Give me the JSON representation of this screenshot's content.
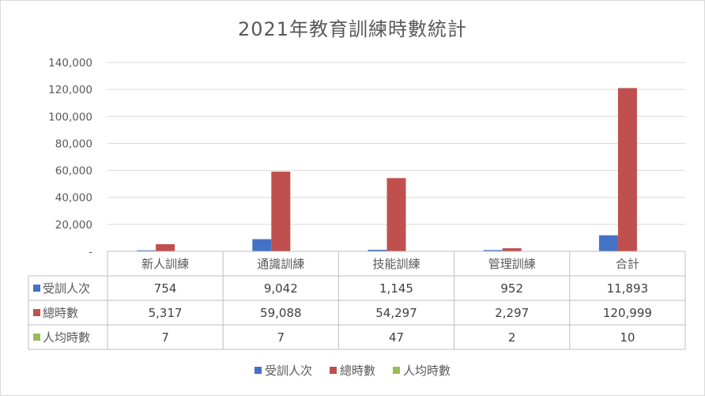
{
  "chart_data": {
    "type": "bar",
    "title": "2021年教育訓練時數統計",
    "categories": [
      "新人訓練",
      "通識訓練",
      "技能訓練",
      "管理訓練",
      "合計"
    ],
    "series": [
      {
        "name": "受訓人次",
        "color": "#4472c4",
        "values": [
          754,
          9042,
          1145,
          952,
          11893
        ],
        "labels": [
          "754",
          "9,042",
          "1,145",
          "952",
          "11,893"
        ]
      },
      {
        "name": "總時數",
        "color": "#c0504d",
        "values": [
          5317,
          59088,
          54297,
          2297,
          120999
        ],
        "labels": [
          "5,317",
          "59,088",
          "54,297",
          "2,297",
          "120,999"
        ]
      },
      {
        "name": "人均時數",
        "color": "#9bbb59",
        "values": [
          7,
          7,
          47,
          2,
          10
        ],
        "labels": [
          "7",
          "7",
          "47",
          "2",
          "10"
        ]
      }
    ],
    "ylim": [
      0,
      140000
    ],
    "yticks": [
      {
        "value": 0,
        "label": "-"
      },
      {
        "value": 20000,
        "label": "20,000"
      },
      {
        "value": 40000,
        "label": "40,000"
      },
      {
        "value": 60000,
        "label": "60,000"
      },
      {
        "value": 80000,
        "label": "80,000"
      },
      {
        "value": 100000,
        "label": "100,000"
      },
      {
        "value": 120000,
        "label": "120,000"
      },
      {
        "value": 140000,
        "label": "140,000"
      }
    ],
    "grid": true,
    "legend_position": "bottom",
    "data_table": true
  }
}
